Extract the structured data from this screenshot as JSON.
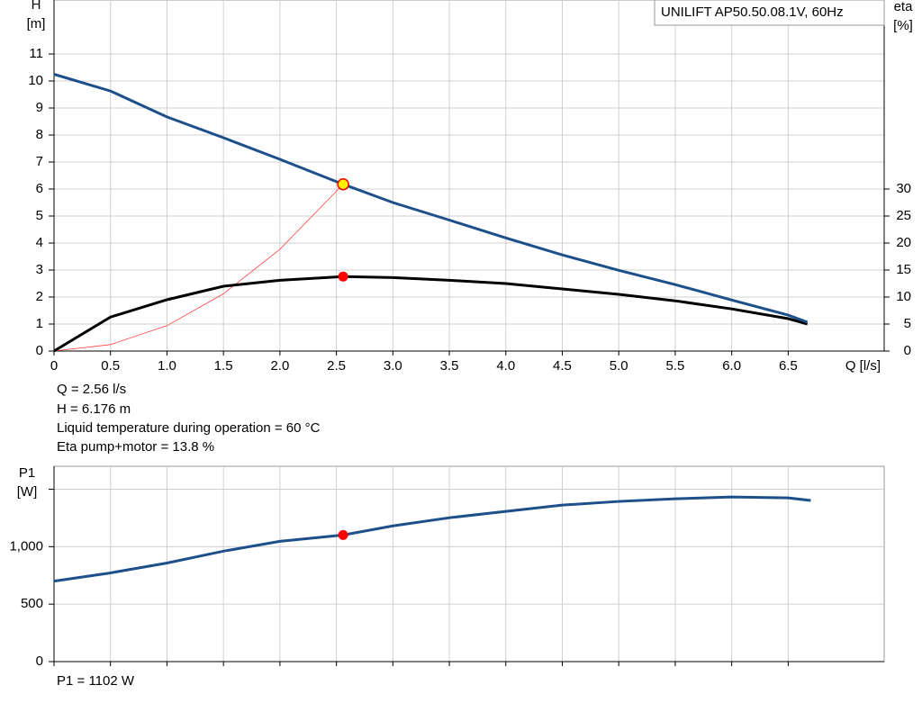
{
  "chart_data": [
    {
      "type": "line",
      "title": "UNILIFT AP50.50.08.1V, 60Hz",
      "xlabel": "Q [l/s]",
      "ylabel": [
        "H",
        "[m]"
      ],
      "y2label": [
        "eta",
        "[%]"
      ],
      "xlim": [
        0,
        7.35
      ],
      "ylim": [
        0,
        13
      ],
      "y2lim": [
        0,
        65
      ],
      "xticks": [
        0,
        0.5,
        {
          "value": 1,
          "label": "1.0"
        },
        1.5,
        {
          "value": 2,
          "label": "2.0"
        },
        2.5,
        {
          "value": 3,
          "label": "3.0"
        },
        3.5,
        {
          "value": 4,
          "label": "4.0"
        },
        4.5,
        {
          "value": 5,
          "label": "5.0"
        },
        5.5,
        {
          "value": 6,
          "label": "6.0"
        },
        6.5
      ],
      "yticks": [
        0,
        1,
        2,
        3,
        4,
        5,
        6,
        7,
        8,
        9,
        10,
        11
      ],
      "y2ticks": [
        0,
        5,
        10,
        15,
        20,
        25,
        30
      ],
      "grid": true,
      "series": [
        {
          "color": "#1d4f8a",
          "width": 3,
          "x": [
            0,
            0.5,
            1,
            1.5,
            2,
            2.56,
            3,
            3.5,
            4,
            4.5,
            5,
            5.5,
            6,
            6.5,
            6.67
          ],
          "values": [
            10.25,
            9.63,
            8.67,
            7.9,
            7.1,
            6.176,
            5.5,
            4.85,
            4.19,
            3.56,
            2.99,
            2.46,
            1.89,
            1.33,
            1.07
          ]
        },
        {
          "color": "#000000",
          "width": 3,
          "axis": "y2",
          "x": [
            0,
            0.5,
            1,
            1.5,
            2,
            2.56,
            3,
            3.5,
            4,
            4.5,
            5,
            5.5,
            6,
            6.5,
            6.67
          ],
          "values": [
            0,
            6.3,
            9.5,
            12,
            13.1,
            13.8,
            13.6,
            13.1,
            12.5,
            11.5,
            10.5,
            9.3,
            7.8,
            6,
            5
          ]
        },
        {
          "color": "#ff4040",
          "width": 0.8,
          "x": [
            0,
            0.5,
            1,
            1.5,
            2,
            2.56
          ],
          "values": [
            0,
            0.24,
            0.94,
            2.12,
            3.77,
            6.176
          ]
        }
      ],
      "operating_point": {
        "Q": 2.56,
        "H": 6.176,
        "eta": 13.8
      },
      "annotations": [
        "Q = 2.56 l/s",
        "H = 6.176 m",
        "Liquid temperature during operation = 60 °C",
        "Eta pump+motor = 13.8 %"
      ]
    },
    {
      "type": "line",
      "ylabel": [
        "P1",
        "[W]"
      ],
      "xlim": [
        0,
        7.35
      ],
      "ylim": [
        0,
        1700
      ],
      "xticks": [
        0,
        0.5,
        1,
        1.5,
        2,
        2.5,
        3,
        3.5,
        4,
        4.5,
        5,
        5.5,
        6,
        6.5
      ],
      "xtick_labels": false,
      "yticks": [
        0,
        500,
        {
          "value": 1000,
          "label": "1,000"
        },
        {
          "value": 1500,
          "label": null
        }
      ],
      "grid": true,
      "series": [
        {
          "color": "#1d4f8a",
          "width": 3,
          "x": [
            0,
            0.5,
            1,
            1.5,
            2,
            2.56,
            3,
            3.5,
            4,
            4.5,
            5,
            5.5,
            6,
            6.5,
            6.7
          ],
          "values": [
            700,
            772,
            858,
            961,
            1047,
            1102,
            1181,
            1252,
            1307,
            1362,
            1394,
            1417,
            1433,
            1425,
            1402
          ]
        }
      ],
      "operating_point": {
        "Q": 2.56,
        "P1": 1102
      },
      "annotations": [
        "P1 = 1102 W"
      ]
    }
  ]
}
